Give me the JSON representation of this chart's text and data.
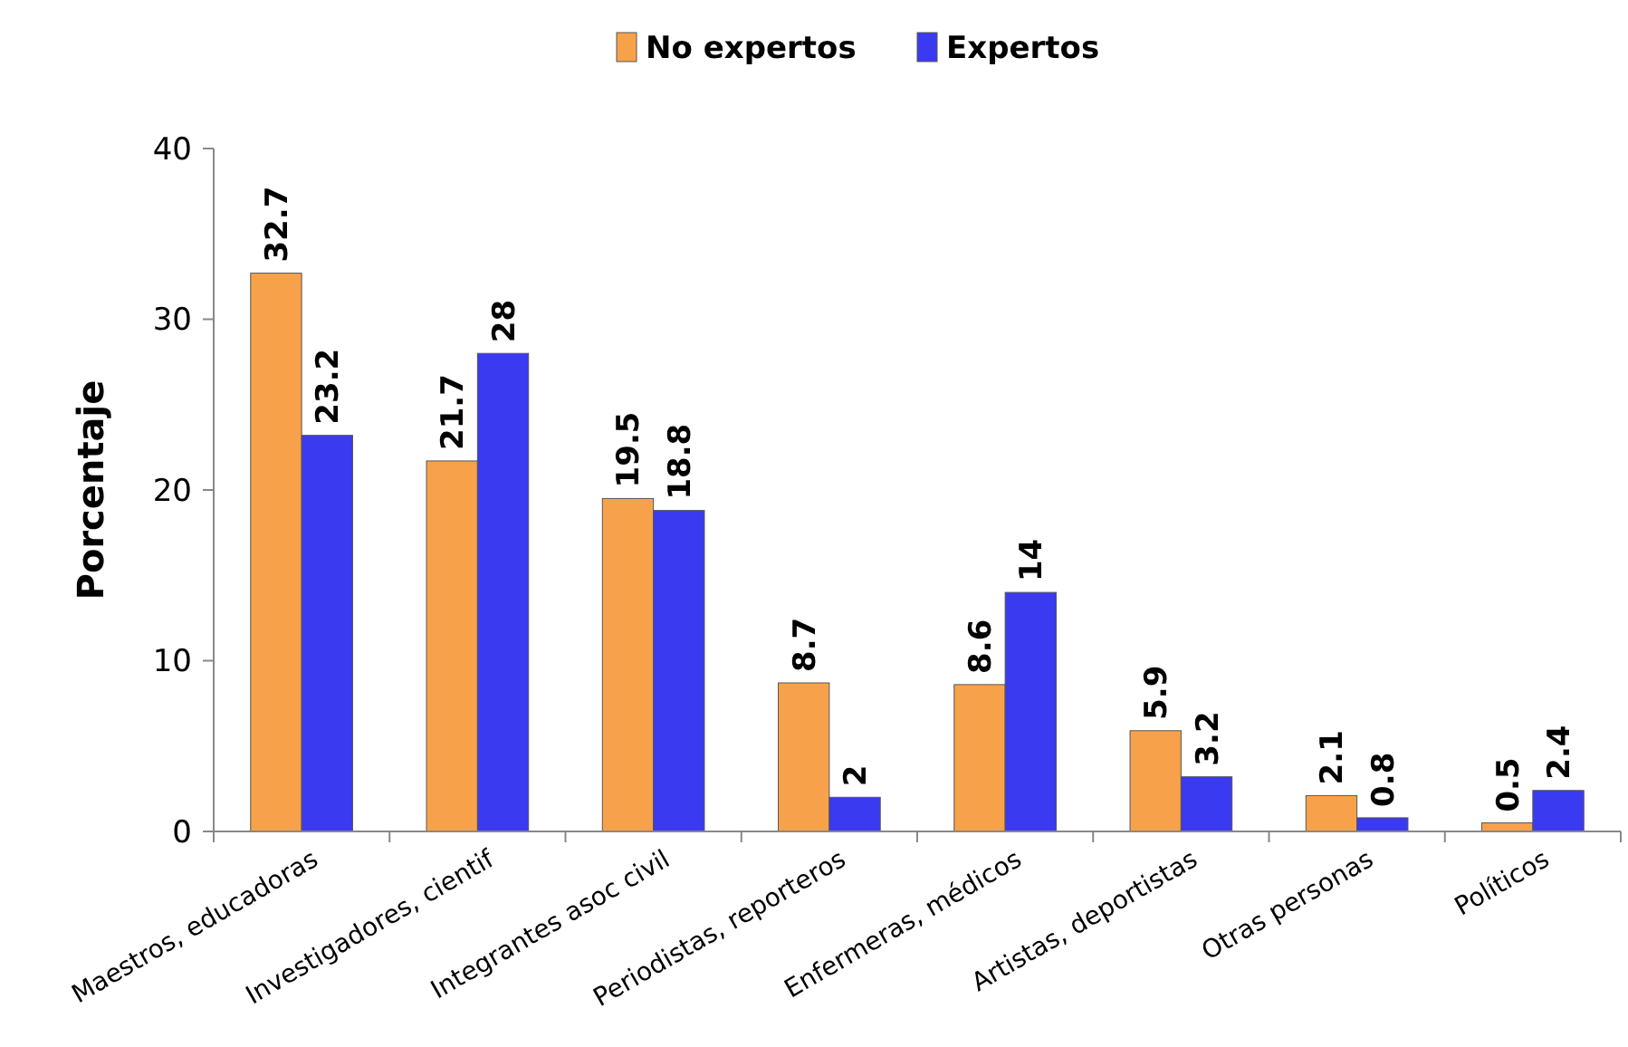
{
  "chart_data": {
    "type": "bar",
    "ylabel": "Porcentaje",
    "categories": [
      "Maestros, educadoras",
      "Investigadores, cientif",
      "Integrantes asoc civil",
      "Periodistas, reporteros",
      "Enfermeras, médicos",
      "Artistas, deportistas",
      "Otras personas",
      "Políticos"
    ],
    "series": [
      {
        "name": "No expertos",
        "color": "#f7a24a",
        "values": [
          32.7,
          21.7,
          19.5,
          8.7,
          8.6,
          5.9,
          2.1,
          0.5
        ]
      },
      {
        "name": "Expertos",
        "color": "#3a3af0",
        "values": [
          23.2,
          28,
          18.8,
          2,
          14,
          3.2,
          0.8,
          2.4
        ]
      }
    ],
    "ylim": [
      0,
      40
    ],
    "yticks": [
      0,
      10,
      20,
      30,
      40
    ],
    "grid": false,
    "legend": "top",
    "data_labels": true
  }
}
